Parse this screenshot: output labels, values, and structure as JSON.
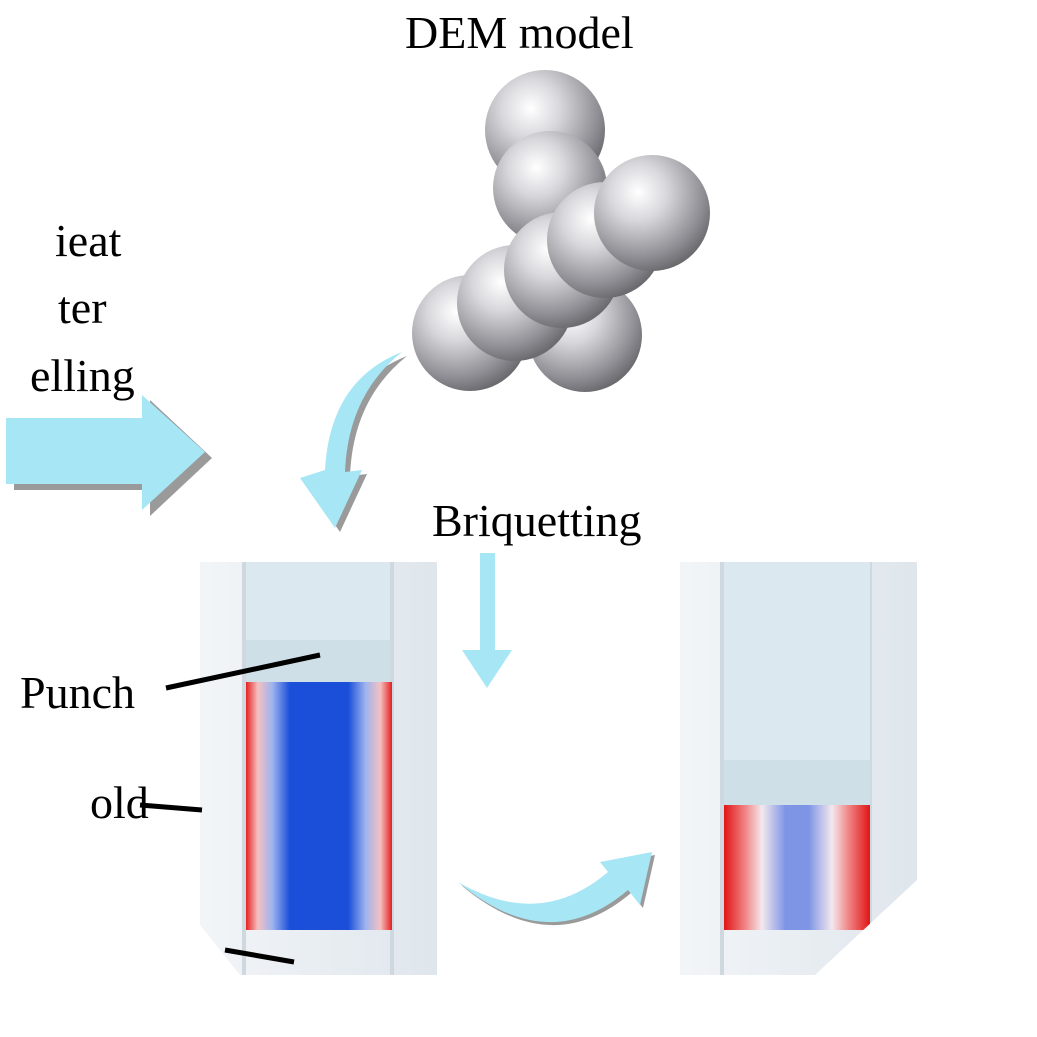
{
  "diagram": {
    "title": "DEM model",
    "process_label": "Briquetting",
    "side_text_lines": [
      "ieat",
      "ter",
      "elling"
    ],
    "labels": {
      "punch": "Punch",
      "mold": "old"
    },
    "colors": {
      "arrow": "#a6e6f5",
      "arrow_shadow": "#9a9a9a",
      "sphere": "#c8c8cc",
      "mold_wall": "#e8edf2",
      "punch": "#d3e2ea",
      "packing_high": "#e01818",
      "packing_low": "#1646d6"
    }
  }
}
